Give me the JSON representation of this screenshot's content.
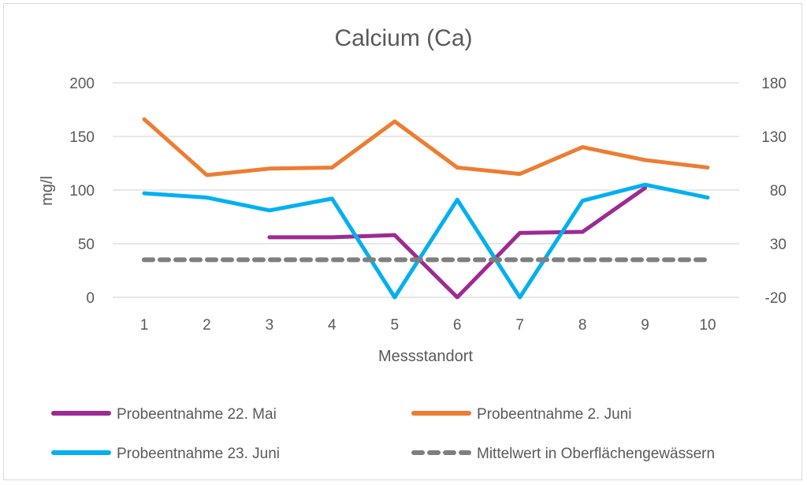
{
  "chart_data": {
    "type": "line",
    "title": "Calcium (Ca)",
    "xlabel": "Messstandort",
    "ylabel": "mg/l",
    "categories": [
      "1",
      "2",
      "3",
      "4",
      "5",
      "6",
      "7",
      "8",
      "9",
      "10"
    ],
    "ylim": [
      0,
      200
    ],
    "yticks": [
      "0",
      "50",
      "100",
      "150",
      "200"
    ],
    "y2lim": [
      -20,
      180
    ],
    "y2ticks": [
      "-20",
      "30",
      "80",
      "130",
      "180"
    ],
    "grid": true,
    "legend_position": "bottom",
    "series": [
      {
        "name": "Probeentnahme 22. Mai",
        "color": "#9e2a93",
        "dashed": false,
        "values": [
          null,
          null,
          56,
          56,
          58,
          0,
          60,
          61,
          102,
          null
        ]
      },
      {
        "name": "Probeentnahme 2. Juni",
        "color": "#ed7d31",
        "dashed": false,
        "values": [
          166,
          114,
          120,
          121,
          164,
          121,
          115,
          140,
          128,
          121
        ]
      },
      {
        "name": "Probeentnahme 23. Juni",
        "color": "#00b0f0",
        "dashed": false,
        "values": [
          97,
          93,
          81,
          92,
          0,
          91,
          0,
          90,
          105,
          93
        ]
      },
      {
        "name": "Mittelwert in Oberflächengewässern",
        "color": "#7f7f7f",
        "dashed": true,
        "values": [
          35,
          35,
          35,
          35,
          35,
          35,
          35,
          35,
          35,
          35
        ]
      }
    ]
  }
}
